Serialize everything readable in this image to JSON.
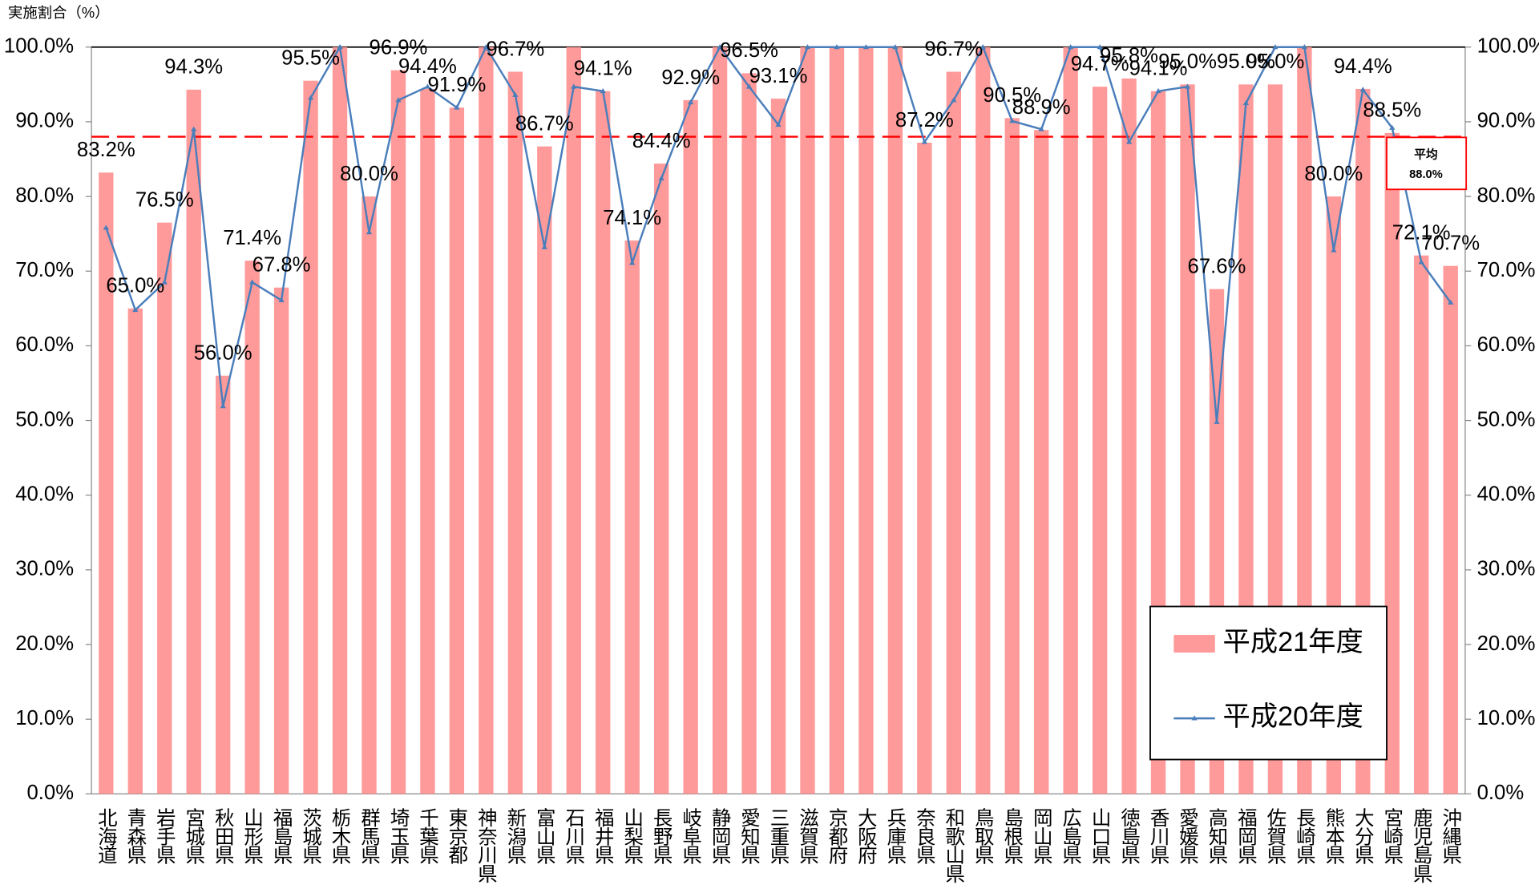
{
  "chart_data": {
    "type": "bar_line",
    "y_axis_title": "実施割合（%）",
    "categories": [
      "北海道",
      "青森県",
      "岩手県",
      "宮城県",
      "秋田県",
      "山形県",
      "福島県",
      "茨城県",
      "栃木県",
      "群馬県",
      "埼玉県",
      "千葉県",
      "東京都",
      "神奈川県",
      "新潟県",
      "富山県",
      "石川県",
      "福井県",
      "山梨県",
      "長野県",
      "岐阜県",
      "静岡県",
      "愛知県",
      "三重県",
      "滋賀県",
      "京都府",
      "大阪府",
      "兵庫県",
      "奈良県",
      "和歌山県",
      "鳥取県",
      "島根県",
      "岡山県",
      "広島県",
      "山口県",
      "徳島県",
      "香川県",
      "愛媛県",
      "高知県",
      "福岡県",
      "佐賀県",
      "長崎県",
      "熊本県",
      "大分県",
      "宮崎県",
      "鹿児島県",
      "沖縄県"
    ],
    "series": [
      {
        "name": "平成21年度",
        "kind": "bar",
        "color": "#ff9a9a",
        "values": [
          83.2,
          65.0,
          76.5,
          94.3,
          56.0,
          71.4,
          67.8,
          95.5,
          100,
          80.0,
          96.9,
          94.4,
          91.9,
          100,
          96.7,
          86.7,
          100,
          94.1,
          74.1,
          84.4,
          92.9,
          100,
          96.5,
          93.1,
          100,
          100,
          100,
          100,
          87.2,
          96.7,
          100,
          90.5,
          88.9,
          100,
          94.7,
          95.8,
          94.1,
          95.0,
          67.6,
          95.0,
          95.0,
          100,
          80.0,
          94.4,
          88.5,
          72.1,
          70.7
        ],
        "value_labels": [
          "83.2%",
          "65.0%",
          "76.5%",
          "94.3%",
          "56.0%",
          "71.4%",
          "67.8%",
          "95.5%",
          null,
          "80.0%",
          "96.9%",
          "94.4%",
          "91.9%",
          null,
          "96.7%",
          "86.7%",
          null,
          "94.1%",
          "74.1%",
          "84.4%",
          "92.9%",
          null,
          "96.5%",
          "93.1%",
          null,
          null,
          null,
          null,
          "87.2%",
          "96.7%",
          null,
          "90.5%",
          "88.9%",
          null,
          "94.7%",
          "95.8%",
          "94.1%",
          "95.0%",
          "67.6%",
          "95.0%",
          "95.0%",
          null,
          "80.0%",
          "94.4%",
          "88.5%",
          "72.1%",
          "70.7%"
        ]
      },
      {
        "name": "平成20年度",
        "kind": "line",
        "color": "#4a7ebb",
        "axis": "y2",
        "values": [
          75.8,
          64.8,
          68.5,
          89.0,
          51.9,
          68.5,
          66.1,
          93.2,
          100,
          75.2,
          92.9,
          94.7,
          91.9,
          100,
          93.6,
          73.2,
          94.7,
          94.1,
          71.1,
          82.4,
          92.6,
          100,
          94.7,
          89.6,
          100,
          100,
          100,
          100,
          87.3,
          92.9,
          100,
          90.1,
          89.0,
          100,
          100,
          87.3,
          94.1,
          94.7,
          49.8,
          92.5,
          100,
          100,
          72.8,
          94.3,
          89.2,
          71.2,
          65.8
        ]
      }
    ],
    "ylim": [
      0,
      100
    ],
    "yticks": [
      {
        "value": 0,
        "label": "0.0%"
      },
      {
        "value": 10,
        "label": "10.0%"
      },
      {
        "value": 20,
        "label": "20.0%"
      },
      {
        "value": 30,
        "label": "30.0%"
      },
      {
        "value": 40,
        "label": "40.0%"
      },
      {
        "value": 50,
        "label": "50.0%"
      },
      {
        "value": 60,
        "label": "60.0%"
      },
      {
        "value": 70,
        "label": "70.0%"
      },
      {
        "value": 80,
        "label": "80.0%"
      },
      {
        "value": 90,
        "label": "90.0%"
      },
      {
        "value": 100,
        "label": "100.0%"
      }
    ],
    "y2lim": [
      0,
      100
    ],
    "y2ticks": [
      {
        "value": 0,
        "label": "0.0%"
      },
      {
        "value": 10,
        "label": "10.0%"
      },
      {
        "value": 20,
        "label": "20.0%"
      },
      {
        "value": 30,
        "label": "30.0%"
      },
      {
        "value": 40,
        "label": "40.0%"
      },
      {
        "value": 50,
        "label": "50.0%"
      },
      {
        "value": 60,
        "label": "60.0%"
      },
      {
        "value": 70,
        "label": "70.0%"
      },
      {
        "value": 80,
        "label": "80.0%"
      },
      {
        "value": 90,
        "label": "90.0%"
      },
      {
        "value": 100,
        "label": "100.0%"
      }
    ],
    "grid": false,
    "legend": "bottom-right",
    "average": {
      "name": "平均",
      "value": 88.0,
      "value_label": "88.0%",
      "color": "#ff0000"
    }
  }
}
